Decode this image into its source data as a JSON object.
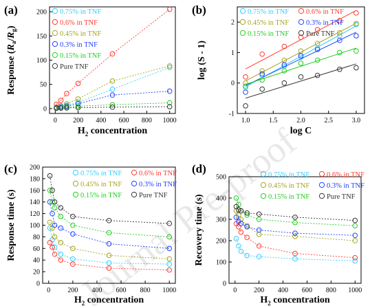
{
  "watermark": "Journal Pre-proof",
  "colors": {
    "0.75% in TNF": "#33ccff",
    "0.6% in TNF": "#ff3b30",
    "0.45% in TNF": "#a3a320",
    "0.3% in TNF": "#2040ff",
    "0.15% in TNF": "#22cc22",
    "Pure TNF": "#333333"
  },
  "chart_data": [
    {
      "panel": "(a)",
      "type": "scatter",
      "xlabel_main": "H",
      "xlabel_sub": "2",
      "xlabel_rest": " concentration",
      "ylabel_parts": [
        "Response (",
        "R",
        "a",
        "/",
        "R",
        "g",
        ")"
      ],
      "xlim": [
        -50,
        1050
      ],
      "ylim": [
        -10,
        210
      ],
      "xticks": [
        0,
        200,
        400,
        600,
        800,
        1000
      ],
      "yticks": [
        0,
        50,
        100,
        150,
        200
      ],
      "legend_columns": 1,
      "series": [
        {
          "name": "0.75% in TNF",
          "x": [
            10,
            50,
            100,
            200,
            500,
            1000
          ],
          "y": [
            2,
            4,
            7,
            13,
            40,
            85
          ]
        },
        {
          "name": "0.6% in TNF",
          "x": [
            10,
            50,
            100,
            200,
            500,
            1000
          ],
          "y": [
            9,
            17,
            31,
            52,
            113,
            205
          ]
        },
        {
          "name": "0.45% in TNF",
          "x": [
            10,
            50,
            100,
            200,
            500,
            1000
          ],
          "y": [
            3,
            6,
            10,
            20,
            57,
            88
          ]
        },
        {
          "name": "0.3% in TNF",
          "x": [
            10,
            50,
            100,
            200,
            500,
            1000
          ],
          "y": [
            2,
            3,
            5,
            10,
            28,
            36
          ]
        },
        {
          "name": "0.15% in TNF",
          "x": [
            10,
            50,
            100,
            200,
            500,
            1000
          ],
          "y": [
            1,
            2,
            3,
            5,
            8,
            12
          ]
        },
        {
          "name": "Pure TNF",
          "x": [
            10,
            50,
            100,
            200,
            500,
            1000
          ],
          "y": [
            0.5,
            1,
            1.5,
            2,
            3,
            4
          ]
        }
      ]
    },
    {
      "panel": "(b)",
      "type": "scatter",
      "xlabel": "log C",
      "ylabel": "log (S - 1)",
      "xlim": [
        0.85,
        3.15
      ],
      "ylim": [
        -1,
        2.5
      ],
      "xticks": [
        "1.0",
        "1.5",
        "2.0",
        "2.5",
        "3.0"
      ],
      "yticks": [
        "-1",
        "0",
        "1",
        "2"
      ],
      "legend_columns": 2,
      "legend_order": [
        "0.75% in TNF",
        "0.6% in TNF",
        "0.45% in TNF",
        "0.3% in TNF",
        "0.15% in TNF",
        "Pure TNF"
      ],
      "fits": "linear fit lines per series",
      "series": [
        {
          "name": "0.75% in TNF",
          "x": [
            1.0,
            1.3,
            1.7,
            2.0,
            2.3,
            2.7,
            3.0
          ],
          "y": [
            -0.15,
            0.25,
            0.55,
            0.85,
            1.15,
            1.55,
            1.92
          ]
        },
        {
          "name": "0.6% in TNF",
          "x": [
            1.0,
            1.3,
            1.7,
            2.0,
            2.3,
            2.7,
            3.0
          ],
          "y": [
            0.2,
            0.95,
            1.2,
            1.5,
            1.75,
            2.05,
            2.3
          ]
        },
        {
          "name": "0.45% in TNF",
          "x": [
            1.0,
            1.3,
            1.7,
            2.0,
            2.3,
            2.7,
            3.0
          ],
          "y": [
            0.0,
            0.4,
            0.75,
            1.05,
            1.3,
            1.65,
            1.95
          ]
        },
        {
          "name": "0.3% in TNF",
          "x": [
            1.0,
            1.3,
            1.7,
            2.0,
            2.3,
            2.7,
            3.0
          ],
          "y": [
            -0.3,
            0.3,
            0.6,
            0.9,
            1.1,
            1.4,
            1.55
          ]
        },
        {
          "name": "0.15% in TNF",
          "x": [
            1.0,
            1.3,
            1.7,
            2.0,
            2.3,
            2.7,
            3.0
          ],
          "y": [
            -0.1,
            0.1,
            0.4,
            0.65,
            0.75,
            1.0,
            1.05
          ]
        },
        {
          "name": "Pure TNF",
          "x": [
            1.0,
            1.3,
            1.7,
            2.0,
            2.3,
            2.7,
            3.0
          ],
          "y": [
            -0.75,
            -0.2,
            0.0,
            0.2,
            0.25,
            0.45,
            0.5
          ]
        }
      ]
    },
    {
      "panel": "(c)",
      "type": "scatter",
      "xlabel_main": "H",
      "xlabel_sub": "2",
      "xlabel_rest": " concentration",
      "ylabel": "Response time (s)",
      "xlim": [
        -50,
        1050
      ],
      "ylim": [
        0,
        200
      ],
      "xticks": [
        0,
        200,
        400,
        600,
        800,
        1000
      ],
      "yticks": [
        0,
        20,
        40,
        60,
        80,
        100,
        120,
        140,
        160,
        180,
        200
      ],
      "legend_columns": 2,
      "legend_order": [
        "0.75% in TNF",
        "0.6% in TNF",
        "0.45% in TNF",
        "0.3% in TNF",
        "0.15% in TNF",
        "Pure TNF"
      ],
      "series": [
        {
          "name": "0.75% in TNF",
          "x": [
            10,
            30,
            50,
            100,
            200,
            500,
            1000
          ],
          "y": [
            95,
            75,
            62,
            50,
            42,
            35,
            33
          ]
        },
        {
          "name": "0.6% in TNF",
          "x": [
            10,
            30,
            50,
            100,
            200,
            500,
            1000
          ],
          "y": [
            70,
            62,
            50,
            40,
            33,
            26,
            23
          ]
        },
        {
          "name": "0.45% in TNF",
          "x": [
            10,
            30,
            50,
            100,
            200,
            500,
            1000
          ],
          "y": [
            105,
            95,
            80,
            70,
            60,
            48,
            42
          ]
        },
        {
          "name": "0.3% in TNF",
          "x": [
            10,
            30,
            50,
            100,
            200,
            500,
            1000
          ],
          "y": [
            140,
            120,
            100,
            95,
            85,
            68,
            60
          ]
        },
        {
          "name": "0.15% in TNF",
          "x": [
            10,
            30,
            50,
            100,
            200,
            500,
            1000
          ],
          "y": [
            160,
            140,
            130,
            115,
            100,
            87,
            80
          ]
        },
        {
          "name": "Pure TNF",
          "x": [
            10,
            30,
            50,
            100,
            200,
            500,
            1000
          ],
          "y": [
            185,
            160,
            140,
            130,
            115,
            108,
            103
          ]
        }
      ]
    },
    {
      "panel": "(d)",
      "type": "scatter",
      "xlabel_main": "H",
      "xlabel_sub": "2",
      "xlabel_rest": " concentration",
      "ylabel": "Recovery time (s)",
      "xlim": [
        -50,
        1050
      ],
      "ylim": [
        0,
        500
      ],
      "xticks": [
        0,
        200,
        400,
        600,
        800,
        1000
      ],
      "yticks": [
        0,
        100,
        200,
        300,
        400,
        500
      ],
      "legend_columns": 2,
      "legend_order": [
        "0.75% in TNF",
        "0.6% in TNF",
        "0.45% in TNF",
        "0.3% in TNF",
        "0.15% in TNF",
        "Pure TNF"
      ],
      "series": [
        {
          "name": "0.75% in TNF",
          "x": [
            10,
            30,
            50,
            100,
            200,
            500,
            1000
          ],
          "y": [
            210,
            175,
            150,
            130,
            125,
            115,
            105
          ]
        },
        {
          "name": "0.6% in TNF",
          "x": [
            10,
            30,
            50,
            100,
            200,
            500,
            1000
          ],
          "y": [
            280,
            265,
            240,
            215,
            175,
            140,
            120
          ]
        },
        {
          "name": "0.45% in TNF",
          "x": [
            10,
            30,
            50,
            100,
            200,
            500,
            1000
          ],
          "y": [
            340,
            320,
            300,
            270,
            230,
            220,
            200
          ]
        },
        {
          "name": "0.3% in TNF",
          "x": [
            10,
            30,
            50,
            100,
            200,
            500,
            1000
          ],
          "y": [
            310,
            290,
            280,
            265,
            250,
            235,
            225
          ]
        },
        {
          "name": "0.15% in TNF",
          "x": [
            10,
            30,
            50,
            100,
            200,
            500,
            1000
          ],
          "y": [
            400,
            370,
            340,
            320,
            300,
            285,
            270
          ]
        },
        {
          "name": "Pure TNF",
          "x": [
            10,
            30,
            50,
            100,
            200,
            500,
            1000
          ],
          "y": [
            360,
            345,
            340,
            330,
            325,
            310,
            295
          ]
        }
      ]
    }
  ]
}
